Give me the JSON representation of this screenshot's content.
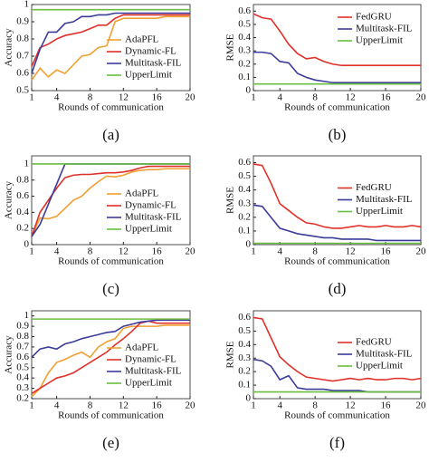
{
  "chart_data": [
    {
      "type": "line",
      "caption": "(a)",
      "xlabel": "Rounds of communication",
      "ylabel": "Accuracy",
      "x": [
        1,
        2,
        3,
        4,
        5,
        6,
        7,
        8,
        9,
        10,
        11,
        12,
        13,
        14,
        15,
        16,
        17,
        18,
        19,
        20
      ],
      "xlim": [
        1,
        20
      ],
      "xticks": [
        1,
        4,
        8,
        12,
        16,
        20
      ],
      "ylim": [
        0.5,
        1
      ],
      "yticks": [
        0.5,
        0.6,
        0.7,
        0.8,
        0.9,
        1
      ],
      "legend": "lower-right",
      "series": [
        {
          "name": "AdaPFL",
          "color": "#f0a030",
          "values": [
            0.56,
            0.63,
            0.58,
            0.62,
            0.6,
            0.65,
            0.7,
            0.71,
            0.75,
            0.76,
            0.9,
            0.92,
            0.92,
            0.92,
            0.92,
            0.92,
            0.93,
            0.93,
            0.93,
            0.93
          ]
        },
        {
          "name": "Dynamic-FL",
          "color": "#e0302a",
          "values": [
            0.64,
            0.75,
            0.77,
            0.8,
            0.82,
            0.83,
            0.84,
            0.86,
            0.88,
            0.88,
            0.92,
            0.94,
            0.94,
            0.94,
            0.94,
            0.94,
            0.94,
            0.94,
            0.94,
            0.94
          ]
        },
        {
          "name": "Multitask-FIL",
          "color": "#3b3b9a",
          "values": [
            0.6,
            0.74,
            0.84,
            0.84,
            0.89,
            0.9,
            0.93,
            0.93,
            0.94,
            0.94,
            0.95,
            0.95,
            0.95,
            0.95,
            0.95,
            0.95,
            0.95,
            0.95,
            0.95,
            0.95
          ]
        },
        {
          "name": "UpperLimit",
          "color": "#6abf40",
          "values": [
            0.97,
            0.97,
            0.97,
            0.97,
            0.97,
            0.97,
            0.97,
            0.97,
            0.97,
            0.97,
            0.97,
            0.97,
            0.97,
            0.97,
            0.97,
            0.97,
            0.97,
            0.97,
            0.97,
            0.97
          ]
        }
      ]
    },
    {
      "type": "line",
      "caption": "(b)",
      "xlabel": "Rounds of communication",
      "ylabel": "RMSE",
      "x": [
        1,
        2,
        3,
        4,
        5,
        6,
        7,
        8,
        9,
        10,
        11,
        12,
        13,
        14,
        15,
        16,
        17,
        18,
        19,
        20
      ],
      "xlim": [
        1,
        20
      ],
      "xticks": [
        1,
        4,
        8,
        12,
        16,
        20
      ],
      "ylim": [
        0,
        0.65
      ],
      "yticks": [
        0,
        0.1,
        0.2,
        0.3,
        0.4,
        0.5,
        0.6
      ],
      "legend": "upper-right",
      "series": [
        {
          "name": "FedGRU",
          "color": "#e0302a",
          "values": [
            0.58,
            0.55,
            0.54,
            0.45,
            0.35,
            0.28,
            0.24,
            0.25,
            0.22,
            0.2,
            0.19,
            0.19,
            0.19,
            0.19,
            0.19,
            0.19,
            0.19,
            0.19,
            0.19,
            0.19
          ]
        },
        {
          "name": "Multitask-FIL",
          "color": "#3b3b9a",
          "values": [
            0.29,
            0.29,
            0.28,
            0.22,
            0.21,
            0.13,
            0.1,
            0.08,
            0.07,
            0.06,
            0.06,
            0.06,
            0.06,
            0.06,
            0.06,
            0.06,
            0.06,
            0.06,
            0.06,
            0.06
          ]
        },
        {
          "name": "UpperLimit",
          "color": "#6abf40",
          "values": [
            0.05,
            0.05,
            0.05,
            0.05,
            0.05,
            0.05,
            0.05,
            0.05,
            0.05,
            0.05,
            0.05,
            0.05,
            0.05,
            0.05,
            0.05,
            0.05,
            0.05,
            0.05,
            0.05,
            0.05
          ]
        }
      ]
    },
    {
      "type": "line",
      "caption": "(c)",
      "xlabel": "Rounds of communication",
      "ylabel": "Accuracy",
      "x": [
        1,
        2,
        3,
        4,
        5,
        6,
        7,
        8,
        9,
        10,
        11,
        12,
        13,
        14,
        15,
        16,
        17,
        18,
        19,
        20
      ],
      "xlim": [
        1,
        20
      ],
      "xticks": [
        1,
        4,
        8,
        12,
        16,
        20
      ],
      "ylim": [
        0,
        1.1
      ],
      "yticks": [
        0,
        0.2,
        0.4,
        0.6,
        0.8,
        1
      ],
      "legend": "lower-right",
      "series": [
        {
          "name": "AdaPFL",
          "color": "#f0a030",
          "values": [
            0.1,
            0.33,
            0.32,
            0.35,
            0.45,
            0.55,
            0.6,
            0.7,
            0.78,
            0.85,
            0.84,
            0.86,
            0.9,
            0.92,
            0.93,
            0.93,
            0.94,
            0.94,
            0.94,
            0.94
          ]
        },
        {
          "name": "Dynamic-FL",
          "color": "#e0302a",
          "values": [
            0.1,
            0.4,
            0.55,
            0.7,
            0.83,
            0.86,
            0.87,
            0.87,
            0.88,
            0.89,
            0.89,
            0.9,
            0.92,
            0.95,
            0.97,
            0.97,
            0.97,
            0.97,
            0.97,
            0.97
          ]
        },
        {
          "name": "Multitask-FIL",
          "color": "#3b3b9a",
          "values": [
            0.1,
            0.25,
            0.5,
            0.75,
            1,
            1,
            1,
            1,
            1,
            1,
            1,
            1,
            1,
            1,
            1,
            1,
            1,
            1,
            1,
            1
          ]
        },
        {
          "name": "UpperLimit",
          "color": "#6abf40",
          "values": [
            1,
            1,
            1,
            1,
            1,
            1,
            1,
            1,
            1,
            1,
            1,
            1,
            1,
            1,
            1,
            1,
            1,
            1,
            1,
            1
          ]
        }
      ]
    },
    {
      "type": "line",
      "caption": "(d)",
      "xlabel": "Rounds of communication",
      "ylabel": "RMSE",
      "x": [
        1,
        2,
        3,
        4,
        5,
        6,
        7,
        8,
        9,
        10,
        11,
        12,
        13,
        14,
        15,
        16,
        17,
        18,
        19,
        20
      ],
      "xlim": [
        1,
        20
      ],
      "xticks": [
        1,
        4,
        8,
        12,
        16,
        20
      ],
      "ylim": [
        0,
        0.65
      ],
      "yticks": [
        0,
        0.1,
        0.2,
        0.3,
        0.4,
        0.5,
        0.6
      ],
      "legend": "center-right",
      "series": [
        {
          "name": "FedGRU",
          "color": "#e0302a",
          "values": [
            0.59,
            0.58,
            0.45,
            0.3,
            0.25,
            0.2,
            0.16,
            0.15,
            0.13,
            0.12,
            0.12,
            0.13,
            0.14,
            0.13,
            0.13,
            0.14,
            0.13,
            0.13,
            0.14,
            0.13
          ]
        },
        {
          "name": "Multitask-FIL",
          "color": "#3b3b9a",
          "values": [
            0.29,
            0.28,
            0.2,
            0.12,
            0.1,
            0.08,
            0.07,
            0.06,
            0.05,
            0.05,
            0.04,
            0.04,
            0.04,
            0.04,
            0.03,
            0.03,
            0.03,
            0.03,
            0.03,
            0.03
          ]
        },
        {
          "name": "UpperLimit",
          "color": "#6abf40",
          "values": [
            0.01,
            0.01,
            0.01,
            0.01,
            0.01,
            0.01,
            0.01,
            0.01,
            0.01,
            0.01,
            0.01,
            0.01,
            0.01,
            0.01,
            0.01,
            0.01,
            0.01,
            0.01,
            0.01,
            0.01
          ]
        }
      ]
    },
    {
      "type": "line",
      "caption": "(e)",
      "xlabel": "Rounds of communication",
      "ylabel": "Accuracy",
      "x": [
        1,
        2,
        3,
        4,
        5,
        6,
        7,
        8,
        9,
        10,
        11,
        12,
        13,
        14,
        15,
        16,
        17,
        18,
        19,
        20
      ],
      "xlim": [
        1,
        20
      ],
      "xticks": [
        1,
        4,
        8,
        12,
        16,
        20
      ],
      "ylim": [
        0.2,
        1.05
      ],
      "yticks": [
        0.2,
        0.3,
        0.4,
        0.5,
        0.6,
        0.7,
        0.8,
        0.9,
        1
      ],
      "legend": "lower-right",
      "series": [
        {
          "name": "AdaPFL",
          "color": "#f0a030",
          "values": [
            0.22,
            0.3,
            0.45,
            0.55,
            0.58,
            0.62,
            0.65,
            0.6,
            0.7,
            0.75,
            0.78,
            0.88,
            0.9,
            0.9,
            0.9,
            0.9,
            0.91,
            0.91,
            0.91,
            0.91
          ]
        },
        {
          "name": "Dynamic-FL",
          "color": "#e0302a",
          "values": [
            0.25,
            0.3,
            0.35,
            0.4,
            0.42,
            0.45,
            0.5,
            0.55,
            0.6,
            0.65,
            0.72,
            0.78,
            0.85,
            0.93,
            0.95,
            0.93,
            0.93,
            0.93,
            0.93,
            0.93
          ]
        },
        {
          "name": "Multitask-FIL",
          "color": "#3b3b9a",
          "values": [
            0.6,
            0.68,
            0.7,
            0.68,
            0.73,
            0.75,
            0.78,
            0.8,
            0.82,
            0.84,
            0.85,
            0.9,
            0.92,
            0.94,
            0.95,
            0.96,
            0.96,
            0.96,
            0.96,
            0.96
          ]
        },
        {
          "name": "UpperLimit",
          "color": "#6abf40",
          "values": [
            0.97,
            0.97,
            0.97,
            0.97,
            0.97,
            0.97,
            0.97,
            0.97,
            0.97,
            0.97,
            0.97,
            0.97,
            0.97,
            0.97,
            0.97,
            0.97,
            0.97,
            0.97,
            0.97,
            0.97
          ]
        }
      ]
    },
    {
      "type": "line",
      "caption": "(f)",
      "xlabel": "Rounds of communication",
      "ylabel": "RMSE",
      "x": [
        1,
        2,
        3,
        4,
        5,
        6,
        7,
        8,
        9,
        10,
        11,
        12,
        13,
        14,
        15,
        16,
        17,
        18,
        19,
        20
      ],
      "xlim": [
        1,
        20
      ],
      "xticks": [
        1,
        4,
        8,
        12,
        16,
        20
      ],
      "ylim": [
        0,
        0.65
      ],
      "yticks": [
        0,
        0.1,
        0.2,
        0.3,
        0.4,
        0.5,
        0.6
      ],
      "legend": "center-right",
      "series": [
        {
          "name": "FedGRU",
          "color": "#e0302a",
          "values": [
            0.6,
            0.59,
            0.45,
            0.31,
            0.25,
            0.2,
            0.16,
            0.15,
            0.14,
            0.13,
            0.14,
            0.15,
            0.14,
            0.15,
            0.14,
            0.14,
            0.15,
            0.15,
            0.14,
            0.15
          ]
        },
        {
          "name": "Multitask-FIL",
          "color": "#3b3b9a",
          "values": [
            0.29,
            0.28,
            0.24,
            0.14,
            0.17,
            0.08,
            0.07,
            0.07,
            0.07,
            0.06,
            0.06,
            0.06,
            0.06,
            0.05,
            0.05,
            0.05,
            0.05,
            0.05,
            0.05,
            0.05
          ]
        },
        {
          "name": "UpperLimit",
          "color": "#6abf40",
          "values": [
            0.05,
            0.05,
            0.05,
            0.05,
            0.05,
            0.05,
            0.05,
            0.05,
            0.05,
            0.05,
            0.05,
            0.05,
            0.05,
            0.05,
            0.05,
            0.05,
            0.05,
            0.05,
            0.05,
            0.05
          ]
        }
      ]
    }
  ]
}
